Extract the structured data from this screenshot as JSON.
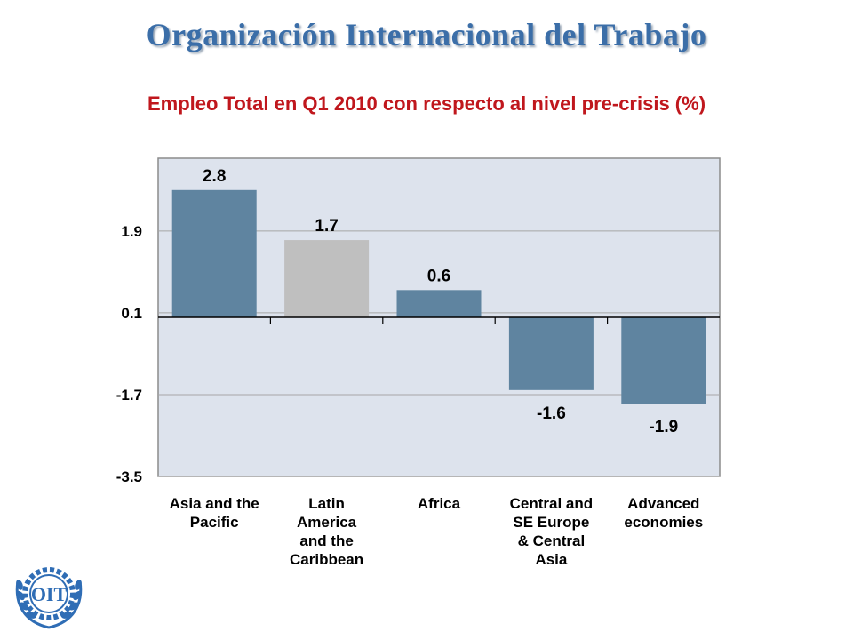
{
  "header": {
    "org_title": "Organización Internacional del Trabajo"
  },
  "logo": {
    "text": "OIT",
    "icon": "ilo-emblem-icon"
  },
  "chart_data": {
    "type": "bar",
    "title": "Empleo Total en Q1 2010 con respecto al nivel pre-crisis (%)",
    "xlabel": "",
    "ylabel": "",
    "categories": [
      [
        "Asia and the",
        "Pacific"
      ],
      [
        "Latin",
        "America",
        "and the",
        "Caribbean"
      ],
      [
        "Africa"
      ],
      [
        "Central and",
        "SE Europe",
        "& Central",
        "Asia"
      ],
      [
        "Advanced",
        "economies"
      ]
    ],
    "values": [
      2.8,
      1.7,
      0.6,
      -1.6,
      -1.9
    ],
    "value_labels": [
      "2.8",
      "1.7",
      "0.6",
      "-1.6",
      "-1.9"
    ],
    "bar_colors": [
      "#5f84a0",
      "#bfbfbf",
      "#5f84a0",
      "#5f84a0",
      "#5f84a0"
    ],
    "yticks": [
      1.9,
      0.1,
      -1.7,
      -3.5
    ],
    "ytick_labels": [
      "1.9",
      "0.1",
      "-1.7",
      "-3.5"
    ],
    "ylim": [
      -3.5,
      3.5
    ],
    "grid": true,
    "plot_background": "#dde3ed",
    "legend": "none"
  }
}
